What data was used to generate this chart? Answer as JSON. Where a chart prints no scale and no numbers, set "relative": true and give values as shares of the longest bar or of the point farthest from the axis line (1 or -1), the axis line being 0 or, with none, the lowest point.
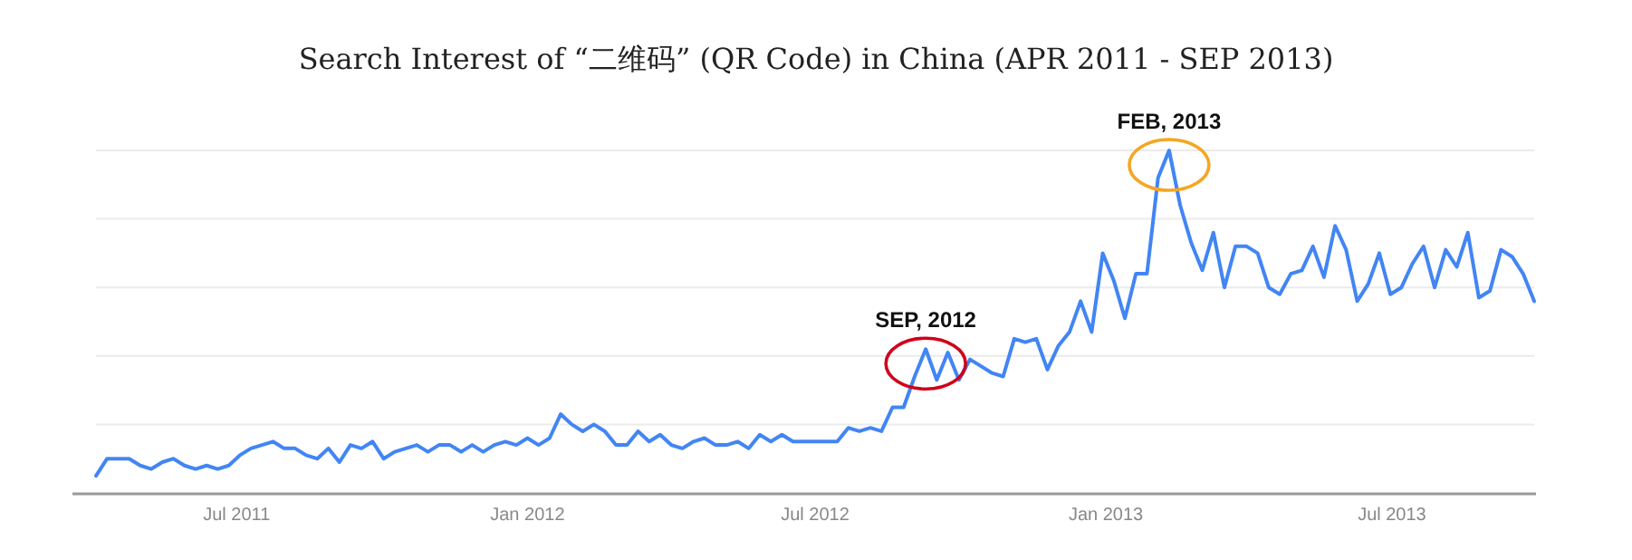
{
  "chart_data": {
    "type": "line",
    "title": "Search Interest of “二维码” (QR Code) in China (APR 2011 - SEP 2013)",
    "relative": true,
    "grid": "y",
    "marker": "none",
    "line_style": "solid",
    "xlim": [
      "2011-04-03",
      "2013-09-29"
    ],
    "xticks": [
      {
        "value": "2011-07-01",
        "label": "Jul 2011"
      },
      {
        "value": "2012-01-01",
        "label": "Jan 2012"
      },
      {
        "value": "2012-07-01",
        "label": "Jul 2012"
      },
      {
        "value": "2013-01-01",
        "label": "Jan 2013"
      },
      {
        "value": "2013-07-01",
        "label": "Jul 2013"
      }
    ],
    "annotations": [
      {
        "text": "SEP, 2012",
        "x": "2012-09-09",
        "y": 0.42
      },
      {
        "text": "FEB, 2013",
        "x": "2013-02-10",
        "y": 1.0
      }
    ],
    "x": [
      "2011-04-03",
      "2011-04-10",
      "2011-04-17",
      "2011-04-24",
      "2011-05-01",
      "2011-05-08",
      "2011-05-15",
      "2011-05-22",
      "2011-05-29",
      "2011-06-05",
      "2011-06-12",
      "2011-06-19",
      "2011-06-26",
      "2011-07-03",
      "2011-07-10",
      "2011-07-17",
      "2011-07-24",
      "2011-07-31",
      "2011-08-07",
      "2011-08-14",
      "2011-08-21",
      "2011-08-28",
      "2011-09-04",
      "2011-09-11",
      "2011-09-18",
      "2011-09-25",
      "2011-10-02",
      "2011-10-09",
      "2011-10-16",
      "2011-10-23",
      "2011-10-30",
      "2011-11-06",
      "2011-11-13",
      "2011-11-20",
      "2011-11-27",
      "2011-12-04",
      "2011-12-11",
      "2011-12-18",
      "2011-12-25",
      "2012-01-01",
      "2012-01-08",
      "2012-01-15",
      "2012-01-22",
      "2012-01-29",
      "2012-02-05",
      "2012-02-12",
      "2012-02-19",
      "2012-02-26",
      "2012-03-04",
      "2012-03-11",
      "2012-03-18",
      "2012-03-25",
      "2012-04-01",
      "2012-04-08",
      "2012-04-15",
      "2012-04-22",
      "2012-04-29",
      "2012-05-06",
      "2012-05-13",
      "2012-05-20",
      "2012-05-27",
      "2012-06-03",
      "2012-06-10",
      "2012-06-17",
      "2012-06-24",
      "2012-07-01",
      "2012-07-08",
      "2012-07-15",
      "2012-07-22",
      "2012-07-29",
      "2012-08-05",
      "2012-08-12",
      "2012-08-19",
      "2012-08-26",
      "2012-09-02",
      "2012-09-09",
      "2012-09-16",
      "2012-09-23",
      "2012-09-30",
      "2012-10-07",
      "2012-10-14",
      "2012-10-21",
      "2012-10-28",
      "2012-11-04",
      "2012-11-11",
      "2012-11-18",
      "2012-11-25",
      "2012-12-02",
      "2012-12-09",
      "2012-12-16",
      "2012-12-23",
      "2012-12-30",
      "2013-01-06",
      "2013-01-13",
      "2013-01-20",
      "2013-01-27",
      "2013-02-03",
      "2013-02-10",
      "2013-02-17",
      "2013-02-24",
      "2013-03-03",
      "2013-03-10",
      "2013-03-17",
      "2013-03-24",
      "2013-03-31",
      "2013-04-07",
      "2013-04-14",
      "2013-04-21",
      "2013-04-28",
      "2013-05-05",
      "2013-05-12",
      "2013-05-19",
      "2013-05-26",
      "2013-06-02",
      "2013-06-09",
      "2013-06-16",
      "2013-06-23",
      "2013-06-30",
      "2013-07-07",
      "2013-07-14",
      "2013-07-21",
      "2013-07-28",
      "2013-08-04",
      "2013-08-11",
      "2013-08-18",
      "2013-08-25",
      "2013-09-01",
      "2013-09-08",
      "2013-09-15",
      "2013-09-22",
      "2013-09-29"
    ],
    "series": [
      {
        "color": "#4285f4",
        "values": [
          0.05,
          0.1,
          0.1,
          0.1,
          0.08,
          0.07,
          0.09,
          0.1,
          0.08,
          0.07,
          0.08,
          0.07,
          0.08,
          0.11,
          0.13,
          0.14,
          0.15,
          0.13,
          0.13,
          0.11,
          0.1,
          0.13,
          0.09,
          0.14,
          0.13,
          0.15,
          0.1,
          0.12,
          0.13,
          0.14,
          0.12,
          0.14,
          0.14,
          0.12,
          0.14,
          0.12,
          0.14,
          0.15,
          0.14,
          0.16,
          0.14,
          0.16,
          0.23,
          0.2,
          0.18,
          0.2,
          0.18,
          0.14,
          0.14,
          0.18,
          0.15,
          0.17,
          0.14,
          0.13,
          0.15,
          0.16,
          0.14,
          0.14,
          0.15,
          0.13,
          0.17,
          0.15,
          0.17,
          0.15,
          0.15,
          0.15,
          0.15,
          0.15,
          0.19,
          0.18,
          0.19,
          0.18,
          0.25,
          0.25,
          0.34,
          0.42,
          0.33,
          0.41,
          0.33,
          0.39,
          0.37,
          0.35,
          0.34,
          0.45,
          0.44,
          0.45,
          0.36,
          0.43,
          0.47,
          0.56,
          0.47,
          0.7,
          0.62,
          0.51,
          0.64,
          0.64,
          0.92,
          1.0,
          0.84,
          0.73,
          0.65,
          0.76,
          0.6,
          0.72,
          0.72,
          0.7,
          0.6,
          0.58,
          0.64,
          0.65,
          0.72,
          0.63,
          0.78,
          0.71,
          0.56,
          0.61,
          0.7,
          0.58,
          0.6,
          0.67,
          0.72,
          0.6,
          0.71,
          0.66,
          0.76,
          0.57,
          0.59,
          0.71,
          0.69,
          0.64,
          0.56
        ]
      }
    ]
  }
}
